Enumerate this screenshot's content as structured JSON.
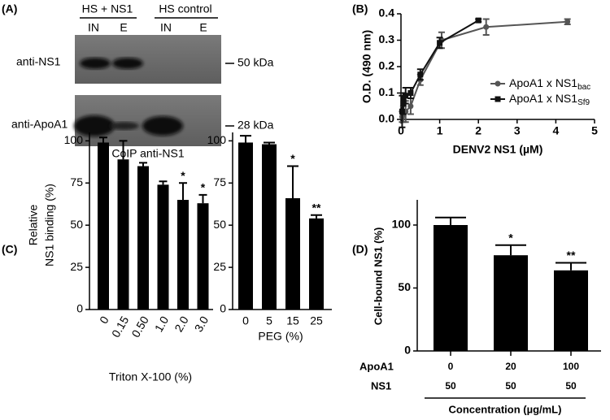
{
  "blot": {
    "panel_label": "(A)",
    "groups": [
      "HS + NS1",
      "HS control"
    ],
    "lanes": [
      "IN",
      "E",
      "IN",
      "E"
    ],
    "rows": [
      {
        "label": "anti-NS1",
        "marker": "50 kDa"
      },
      {
        "label": "anti-ApoA1",
        "marker": "28 kDa"
      }
    ],
    "caption": "CoIP anti-NS1"
  },
  "chart_data": [
    {
      "type": "line",
      "panel_label": "(B)",
      "xlabel": "DENV2 NS1 (µM)",
      "ylabel": "O.D. (490 nm)",
      "xlim": [
        0,
        5
      ],
      "xticks": [
        0,
        1,
        2,
        3,
        4,
        5
      ],
      "ylim": [
        0,
        0.4
      ],
      "yticks": [
        {
          "value": 0,
          "label": "0.0"
        },
        0.1,
        0.2,
        0.3,
        0.4
      ],
      "legend": "right",
      "series": [
        {
          "name": "ApoA1 x NS1",
          "name_sub": "bac",
          "color": "#555555",
          "marker": "circle",
          "x": [
            0.03,
            0.06,
            0.12,
            0.25,
            0.5,
            1.05,
            2.2,
            4.3
          ],
          "values": [
            0.01,
            0.02,
            0.03,
            0.05,
            0.15,
            0.3,
            0.35,
            0.37
          ],
          "errors": [
            0.02,
            0.03,
            0.04,
            0.03,
            0.02,
            0.03,
            0.03,
            0.01
          ]
        },
        {
          "name": "ApoA1 x NS1",
          "name_sub": "Sf9",
          "color": "#111111",
          "marker": "square",
          "x": [
            0.03,
            0.06,
            0.12,
            0.25,
            0.5,
            1.0,
            2.0
          ],
          "values": [
            0.03,
            0.06,
            0.09,
            0.1,
            0.17,
            0.29,
            0.375
          ],
          "errors": [
            0.06,
            0.04,
            0.03,
            0.02,
            0.02,
            0.02,
            0.005
          ]
        }
      ]
    },
    {
      "type": "bar",
      "panel_label": "(C)",
      "ylabel": [
        "Relative",
        "NS1 binding (%)"
      ],
      "xlabel": "Triton X-100 (%)",
      "categories": [
        "0",
        "0.15",
        "0.50",
        "1.0",
        "2.0",
        "3.0"
      ],
      "values": [
        99,
        89,
        85,
        74,
        65,
        63
      ],
      "errors": [
        3,
        11,
        2,
        2,
        10,
        5
      ],
      "annotations": [
        null,
        null,
        null,
        null,
        "*",
        "*"
      ],
      "ylim": [
        0,
        105
      ],
      "yticks": [
        0,
        25,
        50,
        75,
        100
      ],
      "color": "#000000"
    },
    {
      "type": "bar",
      "xlabel": "PEG (%)",
      "categories": [
        "0",
        "5",
        "15",
        "25"
      ],
      "values": [
        99,
        98,
        66,
        54
      ],
      "errors": [
        4,
        1,
        19,
        2
      ],
      "annotations": [
        null,
        null,
        "*",
        "**"
      ],
      "ylim": [
        0,
        105
      ],
      "yticks": [
        0,
        25,
        50,
        75,
        100
      ],
      "color": "#000000"
    },
    {
      "type": "bar",
      "panel_label": "(D)",
      "ylabel": "Cell-bound NS1 (%)",
      "xlabel": "Concentration (µg/mL)",
      "row_labels": [
        "ApoA1",
        "NS1"
      ],
      "categories": [
        "0",
        "20",
        "100"
      ],
      "categories2": [
        "50",
        "50",
        "50"
      ],
      "values": [
        100,
        76,
        64
      ],
      "errors": [
        6,
        8,
        6
      ],
      "annotations": [
        null,
        "*",
        "**"
      ],
      "ylim": [
        0,
        120
      ],
      "yticks": [
        0,
        50,
        100
      ],
      "color": "#000000"
    }
  ]
}
